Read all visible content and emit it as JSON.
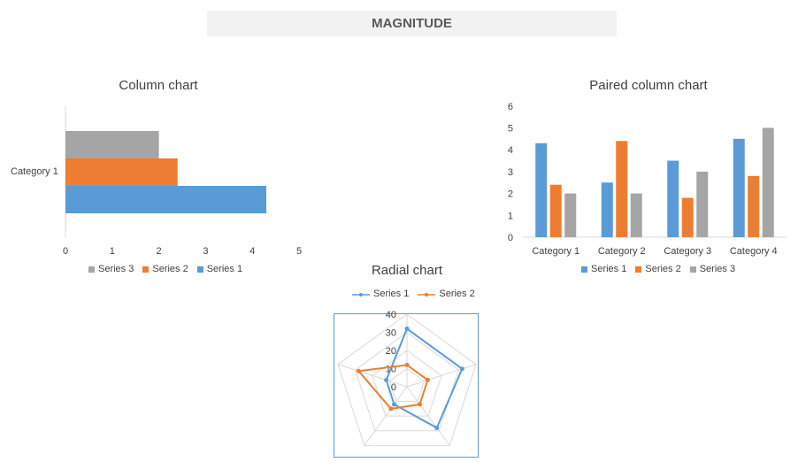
{
  "banner": {
    "title": "MAGNITUDE"
  },
  "chart_data": [
    {
      "type": "bar",
      "orientation": "horizontal",
      "title": "Column chart",
      "categories": [
        "Category 1"
      ],
      "series": [
        {
          "name": "Series 1",
          "values": [
            4.3
          ],
          "color": "#5b9bd5"
        },
        {
          "name": "Series 2",
          "values": [
            2.4
          ],
          "color": "#ed7d31"
        },
        {
          "name": "Series 3",
          "values": [
            2.0
          ],
          "color": "#a5a5a5"
        }
      ],
      "xlim": [
        0,
        5
      ],
      "ticks": [
        "0",
        "1",
        "2",
        "3",
        "4",
        "5"
      ],
      "legend": "bottom",
      "legend_order": [
        "Series 3",
        "Series 2",
        "Series 1"
      ]
    },
    {
      "type": "bar",
      "title": "Paired column chart",
      "categories": [
        "Category 1",
        "Category 2",
        "Category 3",
        "Category 4"
      ],
      "series": [
        {
          "name": "Series 1",
          "values": [
            4.3,
            2.5,
            3.5,
            4.5
          ],
          "color": "#5b9bd5"
        },
        {
          "name": "Series 2",
          "values": [
            2.4,
            4.4,
            1.8,
            2.8
          ],
          "color": "#ed7d31"
        },
        {
          "name": "Series 3",
          "values": [
            2.0,
            2.0,
            3.0,
            5.0
          ],
          "color": "#a5a5a5"
        }
      ],
      "ylim": [
        0,
        6
      ],
      "ticks": [
        "0",
        "1",
        "2",
        "3",
        "4",
        "5",
        "6"
      ],
      "legend": "bottom"
    },
    {
      "type": "radar",
      "title": "Radial chart",
      "axes_count": 5,
      "series": [
        {
          "name": "Series 1",
          "values": [
            32,
            32,
            28,
            12,
            12
          ],
          "color": "#5b9bd5"
        },
        {
          "name": "Series 2",
          "values": [
            12,
            12,
            12,
            15,
            28
          ],
          "color": "#ed7d31"
        }
      ],
      "rlim": [
        0,
        40
      ],
      "ticks": [
        "0",
        "10",
        "20",
        "30",
        "40"
      ],
      "legend": "top"
    }
  ]
}
